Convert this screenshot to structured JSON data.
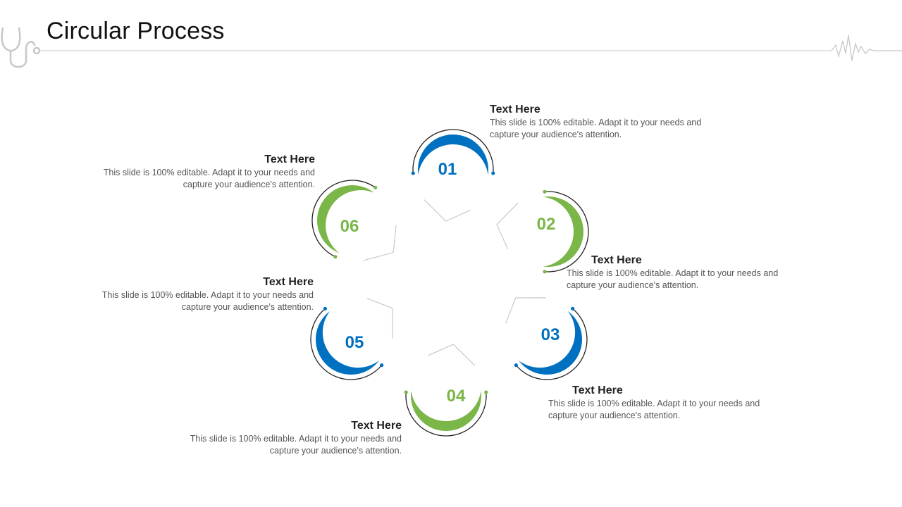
{
  "title": "Circular Process",
  "colors": {
    "blue": "#0070C0",
    "green": "#7AB648",
    "text": "#222222",
    "muted": "#555555"
  },
  "steps": [
    {
      "number": "01",
      "color": "blue",
      "heading": "Text Here",
      "body": "This slide is 100% editable. Adapt it to your needs and capture your audience's attention."
    },
    {
      "number": "02",
      "color": "green",
      "heading": "Text Here",
      "body": "This slide is 100% editable. Adapt it to your needs and capture your audience's attention."
    },
    {
      "number": "03",
      "color": "blue",
      "heading": "Text Here",
      "body": "This slide is 100% editable. Adapt it to your needs and capture your audience's attention."
    },
    {
      "number": "04",
      "color": "green",
      "heading": "Text Here",
      "body": "This slide is 100% editable. Adapt it to your needs and capture your audience's attention."
    },
    {
      "number": "05",
      "color": "blue",
      "heading": "Text Here",
      "body": "This slide is 100% editable. Adapt it to your needs and capture your audience's attention."
    },
    {
      "number": "06",
      "color": "green",
      "heading": "Text Here",
      "body": "This slide is 100% editable. Adapt it to your needs and capture your audience's attention."
    }
  ],
  "icons": [
    "stethoscope-icon",
    "heartbeat-icon"
  ]
}
